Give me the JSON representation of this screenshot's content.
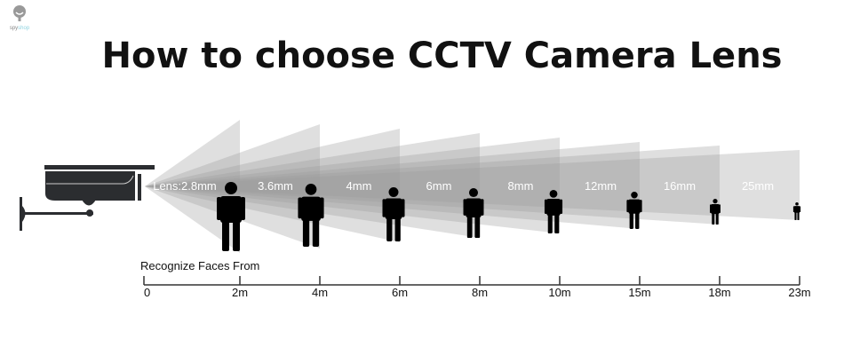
{
  "title": "How to choose CCTV Camera Lens",
  "logo": {
    "text_a": "spy",
    "text_b": "shop"
  },
  "caption": "Recognize Faces From",
  "lenses": [
    "Lens:2.8mm",
    "3.6mm",
    "4mm",
    "6mm",
    "8mm",
    "12mm",
    "16mm",
    "25mm"
  ],
  "distances": [
    "0",
    "2m",
    "4m",
    "6m",
    "8m",
    "10m",
    "15m",
    "18m",
    "23m"
  ],
  "colors": {
    "cone": "#9a9a9a",
    "camera": "#2b2d30",
    "figure": "#000000"
  }
}
